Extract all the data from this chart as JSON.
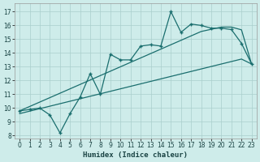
{
  "xlabel": "Humidex (Indice chaleur)",
  "xlim": [
    -0.5,
    23.5
  ],
  "ylim": [
    7.8,
    17.6
  ],
  "xticks": [
    0,
    1,
    2,
    3,
    4,
    5,
    6,
    7,
    8,
    9,
    10,
    11,
    12,
    13,
    14,
    15,
    16,
    17,
    18,
    19,
    20,
    21,
    22,
    23
  ],
  "yticks": [
    8,
    9,
    10,
    11,
    12,
    13,
    14,
    15,
    16,
    17
  ],
  "bg_color": "#ceecea",
  "grid_color": "#aacfcc",
  "line_color": "#1a6e6e",
  "x": [
    0,
    1,
    2,
    3,
    4,
    5,
    6,
    7,
    8,
    9,
    10,
    11,
    12,
    13,
    14,
    15,
    16,
    17,
    18,
    19,
    20,
    21,
    22,
    23
  ],
  "y_main": [
    9.8,
    9.9,
    10.0,
    9.5,
    8.2,
    9.6,
    10.8,
    12.5,
    11.0,
    13.9,
    13.5,
    13.5,
    14.5,
    14.6,
    14.5,
    17.0,
    15.5,
    16.1,
    16.0,
    15.8,
    15.8,
    15.7,
    14.7,
    13.2
  ],
  "y_upper": [
    9.8,
    10.12,
    10.44,
    10.76,
    11.08,
    11.4,
    11.72,
    12.04,
    12.36,
    12.68,
    13.0,
    13.32,
    13.64,
    13.96,
    14.28,
    14.6,
    14.92,
    15.24,
    15.56,
    15.72,
    15.88,
    15.88,
    15.68,
    13.2
  ],
  "y_lower": [
    9.6,
    9.78,
    9.96,
    10.14,
    10.32,
    10.5,
    10.68,
    10.86,
    11.04,
    11.22,
    11.4,
    11.58,
    11.76,
    11.94,
    12.12,
    12.3,
    12.48,
    12.66,
    12.84,
    13.02,
    13.2,
    13.38,
    13.56,
    13.2
  ]
}
